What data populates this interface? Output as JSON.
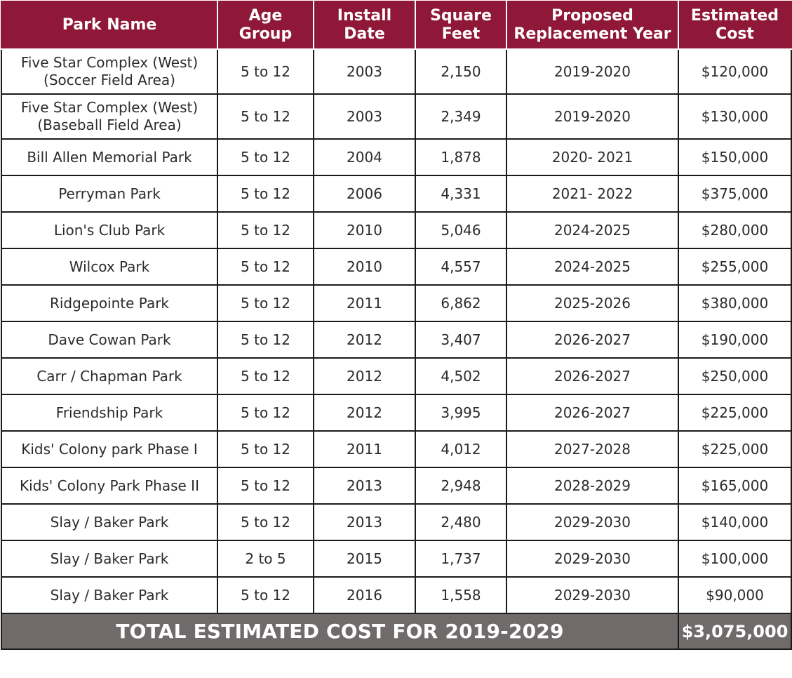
{
  "table": {
    "headers": [
      {
        "line1": "Park Name",
        "line2": ""
      },
      {
        "line1": "Age",
        "line2": "Group"
      },
      {
        "line1": "Install",
        "line2": "Date"
      },
      {
        "line1": "Square",
        "line2": "Feet"
      },
      {
        "line1": "Proposed",
        "line2": "Replacement Year"
      },
      {
        "line1": "Estimated",
        "line2": "Cost"
      }
    ],
    "rows": [
      {
        "park": "Five Star Complex (West)",
        "park_sub": "(Soccer Field Area)",
        "age": "5 to 12",
        "install": "2003",
        "sqft": "2,150",
        "year": "2019-2020",
        "cost": "$120,000"
      },
      {
        "park": "Five Star Complex (West)",
        "park_sub": "(Baseball Field Area)",
        "age": "5 to 12",
        "install": "2003",
        "sqft": "2,349",
        "year": "2019-2020",
        "cost": "$130,000"
      },
      {
        "park": "Bill Allen Memorial Park",
        "park_sub": "",
        "age": "5 to 12",
        "install": "2004",
        "sqft": "1,878",
        "year": "2020- 2021",
        "cost": "$150,000"
      },
      {
        "park": "Perryman Park",
        "park_sub": "",
        "age": "5 to 12",
        "install": "2006",
        "sqft": "4,331",
        "year": "2021- 2022",
        "cost": "$375,000"
      },
      {
        "park": "Lion's Club Park",
        "park_sub": "",
        "age": "5 to 12",
        "install": "2010",
        "sqft": "5,046",
        "year": "2024-2025",
        "cost": "$280,000"
      },
      {
        "park": "Wilcox Park",
        "park_sub": "",
        "age": "5 to 12",
        "install": "2010",
        "sqft": "4,557",
        "year": "2024-2025",
        "cost": "$255,000"
      },
      {
        "park": "Ridgepointe Park",
        "park_sub": "",
        "age": "5 to 12",
        "install": "2011",
        "sqft": "6,862",
        "year": "2025-2026",
        "cost": "$380,000"
      },
      {
        "park": "Dave Cowan Park",
        "park_sub": "",
        "age": "5 to 12",
        "install": "2012",
        "sqft": "3,407",
        "year": "2026-2027",
        "cost": "$190,000"
      },
      {
        "park": "Carr / Chapman Park",
        "park_sub": "",
        "age": "5 to 12",
        "install": "2012",
        "sqft": "4,502",
        "year": "2026-2027",
        "cost": "$250,000"
      },
      {
        "park": "Friendship Park",
        "park_sub": "",
        "age": "5 to 12",
        "install": "2012",
        "sqft": "3,995",
        "year": "2026-2027",
        "cost": "$225,000"
      },
      {
        "park": "Kids' Colony park Phase I",
        "park_sub": "",
        "age": "5 to 12",
        "install": "2011",
        "sqft": "4,012",
        "year": "2027-2028",
        "cost": "$225,000"
      },
      {
        "park": "Kids' Colony Park Phase II",
        "park_sub": "",
        "age": "5 to 12",
        "install": "2013",
        "sqft": "2,948",
        "year": "2028-2029",
        "cost": "$165,000"
      },
      {
        "park": "Slay / Baker Park",
        "park_sub": "",
        "age": "5 to 12",
        "install": "2013",
        "sqft": "2,480",
        "year": "2029-2030",
        "cost": "$140,000"
      },
      {
        "park": "Slay / Baker Park",
        "park_sub": "",
        "age": "2 to 5",
        "install": "2015",
        "sqft": "1,737",
        "year": "2029-2030",
        "cost": "$100,000"
      },
      {
        "park": "Slay / Baker Park",
        "park_sub": "",
        "age": "5 to 12",
        "install": "2016",
        "sqft": "1,558",
        "year": "2029-2030",
        "cost": "$90,000"
      }
    ],
    "footer": {
      "label": "TOTAL ESTIMATED COST FOR 2019-2029",
      "value": "$3,075,000"
    }
  },
  "colors": {
    "header_bg": "#8f1737",
    "footer_bg": "#706a6a"
  }
}
